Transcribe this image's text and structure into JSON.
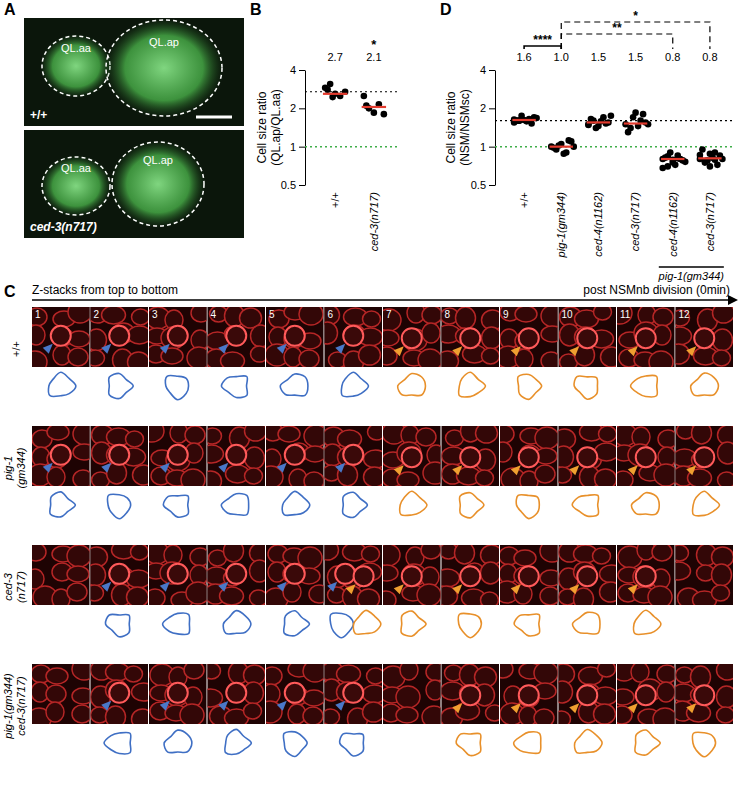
{
  "panel_labels": [
    "A",
    "B",
    "C",
    "D"
  ],
  "panel_a": {
    "images": [
      {
        "genotype": "+/+",
        "cells": [
          "QL.aa",
          "QL.ap"
        ]
      },
      {
        "genotype": "ced-3(n717)",
        "cells": [
          "QL.aa",
          "QL.ap"
        ]
      }
    ]
  },
  "panel_c": {
    "header": "Z-stacks from top to bottom",
    "time_label": "post NSMnb division (0min)",
    "frames": [
      1,
      2,
      3,
      4,
      5,
      6,
      7,
      8,
      9,
      10,
      11,
      12
    ],
    "rows": [
      {
        "label_lines": [
          "+/+"
        ],
        "blue_frames": [
          1,
          2,
          3,
          4,
          5,
          6
        ],
        "orange_frames": [
          7,
          8,
          9,
          10,
          11,
          12
        ]
      },
      {
        "label_lines": [
          "pig-1",
          "(gm344)"
        ],
        "blue_frames": [
          1,
          2,
          3,
          4,
          5,
          6
        ],
        "orange_frames": [
          7,
          8,
          9,
          10,
          11,
          12
        ]
      },
      {
        "label_lines": [
          "ced-3",
          "(n717)"
        ],
        "blue_frames": [
          2,
          3,
          4,
          5,
          6
        ],
        "orange_frames": [
          6,
          7,
          8,
          9,
          10,
          11
        ]
      },
      {
        "label_lines": [
          "pig-1(gm344)",
          "ced-3(n717)"
        ],
        "blue_frames": [
          2,
          3,
          4,
          5,
          6
        ],
        "orange_frames": [
          8,
          9,
          10,
          11,
          12
        ]
      }
    ]
  },
  "chart_data": [
    {
      "type": "scatter",
      "categories": [
        "+/+",
        "ced-3(n717)"
      ],
      "points": [
        [
          2.9,
          3.1,
          2.6,
          2.5,
          2.7,
          2.8,
          2.45
        ],
        [
          2.5,
          2.0,
          1.85,
          2.15,
          1.8,
          2.1
        ]
      ],
      "medians": [
        2.6,
        2.05
      ],
      "means": [
        2.7,
        2.1
      ],
      "mean_labels": [
        "2.7",
        "2.1"
      ],
      "color": "#000000",
      "y_label_lines": [
        "Cell size ratio",
        "(QL.ap/QL.aa)"
      ],
      "log": "y",
      "ylim": [
        0.5,
        4
      ],
      "yticks": [
        0.5,
        1,
        2,
        4
      ],
      "reference_lines": [
        {
          "value": 1,
          "color": "#3fae49",
          "line_style": "dotted"
        }
      ],
      "significance": [
        {
          "from": 1,
          "to": 1,
          "label": "*"
        }
      ]
    },
    {
      "type": "scatter",
      "categories": [
        "+/+",
        "pig-1(gm344)",
        "ced-4(n1162)",
        "ced-3(n717)",
        "ced-4(n1162)",
        "ced-3(n717)"
      ],
      "points": [
        [
          1.55,
          1.6,
          1.62,
          1.65,
          1.7,
          1.6,
          1.75,
          1.58,
          1.52,
          1.68,
          1.63,
          1.6
        ],
        [
          1.0,
          0.95,
          1.05,
          0.9,
          1.1,
          0.98,
          1.02,
          0.88,
          1.12,
          1.0
        ],
        [
          1.5,
          1.6,
          1.45,
          1.7,
          1.55,
          1.65,
          1.4,
          1.58,
          1.52,
          1.75,
          1.48
        ],
        [
          1.5,
          1.4,
          1.85,
          1.6,
          1.55,
          1.3,
          1.7,
          1.45,
          1.8,
          1.5
        ],
        [
          0.8,
          0.7,
          0.75,
          0.85,
          0.78,
          0.82,
          0.9,
          0.72,
          0.8,
          0.76,
          0.68,
          0.84,
          0.79,
          0.81
        ],
        [
          0.8,
          0.75,
          0.7,
          0.9,
          0.85,
          0.95,
          0.78,
          0.82,
          0.72,
          0.8,
          0.86,
          0.77,
          0.88,
          0.79
        ]
      ],
      "medians": [
        1.62,
        1.0,
        1.55,
        1.52,
        0.8,
        0.81
      ],
      "means": [
        1.6,
        1.0,
        1.5,
        1.5,
        0.8,
        0.8
      ],
      "mean_labels": [
        "1.6",
        "1.0",
        "1.5",
        "1.5",
        "0.8",
        "0.8"
      ],
      "color": "#000000",
      "y_label_lines": [
        "Cell size ratio",
        "(NSM/NSMsc)"
      ],
      "log": "y",
      "ylim": [
        0.5,
        4
      ],
      "yticks": [
        0.5,
        1,
        2,
        4
      ],
      "reference_lines": [
        {
          "value": 1,
          "color": "#3fae49",
          "line_style": "dotted"
        }
      ],
      "significance": [
        {
          "from": 0,
          "to": 1,
          "label": "****",
          "line_style": "solid"
        },
        {
          "from": 1,
          "to": 4,
          "label": "**",
          "line_style": "dashed"
        },
        {
          "from": 1,
          "to": 5,
          "label": "*",
          "line_style": "dashed"
        }
      ],
      "group_labels": [
        {
          "from": 4,
          "to": 5,
          "label": "pig-1(gm344)"
        }
      ]
    }
  ]
}
